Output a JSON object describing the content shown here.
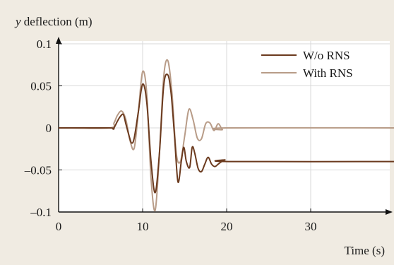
{
  "chart_data": {
    "type": "line",
    "ylabel_var": "y",
    "ylabel_rest": " deflection (m)",
    "xlabel": "Time (s)",
    "xlim": [
      0,
      40
    ],
    "ylim": [
      -0.1,
      0.1
    ],
    "grid": true,
    "legend_position": "top-right",
    "x_ticks": [
      0,
      10,
      20,
      30
    ],
    "x_tick_labels": [
      "0",
      "10",
      "20",
      "30"
    ],
    "y_ticks": [
      0.1,
      0.05,
      0,
      -0.05,
      -0.1
    ],
    "y_tick_labels": [
      "0.1",
      "0.05",
      "0",
      "–0.05",
      "–0.1"
    ],
    "series": [
      {
        "name": "W/o RNS",
        "color": "#6b3a1e",
        "x": [
          0,
          6.0,
          6.5,
          7.0,
          7.3,
          7.7,
          8.0,
          8.4,
          8.7,
          9.0,
          9.5,
          10.0,
          10.5,
          11.0,
          11.5,
          12.0,
          12.5,
          13.0,
          13.4,
          13.8,
          14.2,
          14.6,
          14.9,
          15.2,
          15.6,
          15.9,
          16.2,
          16.6,
          17.0,
          17.4,
          17.8,
          18.2,
          18.6,
          19.0,
          19.4,
          19.8,
          20.2,
          40
        ],
        "y": [
          0,
          0,
          -0.001,
          0.008,
          0.013,
          0.016,
          0.005,
          -0.01,
          -0.018,
          -0.012,
          0.02,
          0.052,
          0.03,
          -0.04,
          -0.077,
          -0.03,
          0.05,
          0.063,
          0.04,
          -0.01,
          -0.064,
          -0.04,
          -0.023,
          -0.04,
          -0.047,
          -0.023,
          -0.03,
          -0.048,
          -0.052,
          -0.043,
          -0.035,
          -0.043,
          -0.046,
          -0.043,
          -0.04,
          -0.038,
          -0.04,
          -0.04
        ]
      },
      {
        "name": "With RNS",
        "color": "#b89c88",
        "x": [
          0,
          6.0,
          6.6,
          7.0,
          7.5,
          8.0,
          8.5,
          9.0,
          9.5,
          10.0,
          10.5,
          11.0,
          11.5,
          12.0,
          12.5,
          13.0,
          13.5,
          14.0,
          14.5,
          15.0,
          15.5,
          16.0,
          16.5,
          17.0,
          17.5,
          18.0,
          18.5,
          19.0,
          19.5,
          20.0,
          40
        ],
        "y": [
          0,
          0,
          0.006,
          0.015,
          0.02,
          0.01,
          -0.015,
          -0.024,
          0.02,
          0.067,
          0.04,
          -0.06,
          -0.098,
          -0.03,
          0.06,
          0.08,
          0.04,
          -0.03,
          -0.04,
          -0.01,
          0.022,
          0.01,
          -0.012,
          -0.013,
          0.005,
          0.006,
          -0.003,
          0.005,
          -0.002,
          0.0,
          0.0
        ]
      }
    ]
  }
}
